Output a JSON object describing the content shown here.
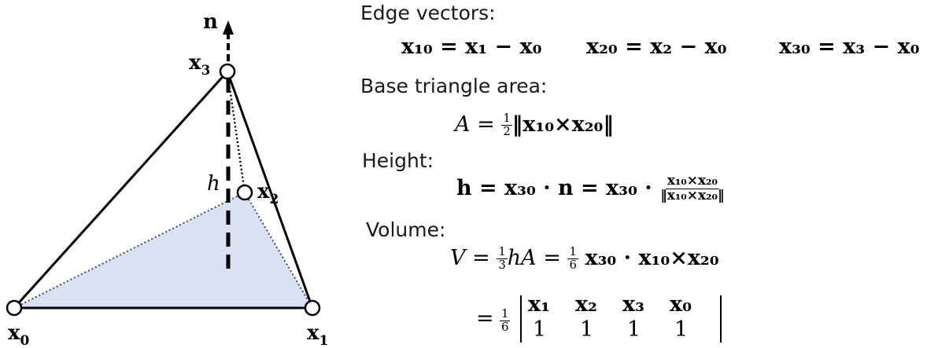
{
  "diagram": {
    "labels": {
      "n": "n",
      "x0": "x",
      "x0_sub": "0",
      "x1": "x",
      "x1_sub": "1",
      "x2": "x",
      "x2_sub": "2",
      "x3": "x",
      "x3_sub": "3",
      "h": "h"
    },
    "colors": {
      "base_fill": "#d9e1f2",
      "dotted_edge": "#2e4a8f",
      "lines": "#000000"
    }
  },
  "text": {
    "edge_heading": "Edge vectors:",
    "edge_eq1": "x₁₀ = x₁ − x₀",
    "edge_eq2": "x₂₀ = x₂ − x₀",
    "edge_eq3": "x₃₀ = x₃ − x₀",
    "area_heading": "Base triangle area:",
    "area_lhs": "A =",
    "area_frac_num": "1",
    "area_frac_den": "2",
    "area_rhs": "‖x₁₀×x₂₀‖",
    "height_heading": "Height:",
    "height_lhs": "h = x₃₀ · n = x₃₀ ·",
    "height_frac_num": "x₁₀×x₂₀",
    "height_frac_den": "‖x₁₀×x₂₀‖",
    "volume_heading": "Volume:",
    "vol_lhs": "V =",
    "vol_frac1_num": "1",
    "vol_frac1_den": "3",
    "vol_mid": "hA =",
    "vol_frac2_num": "1",
    "vol_frac2_den": "6",
    "vol_rhs": "x₃₀ · x₁₀×x₂₀",
    "det_eq": "=",
    "det_frac_num": "1",
    "det_frac_den": "6",
    "det_row1": [
      "x₁",
      "x₂",
      "x₃",
      "x₀"
    ],
    "det_row2": [
      "1",
      "1",
      "1",
      "1"
    ]
  }
}
